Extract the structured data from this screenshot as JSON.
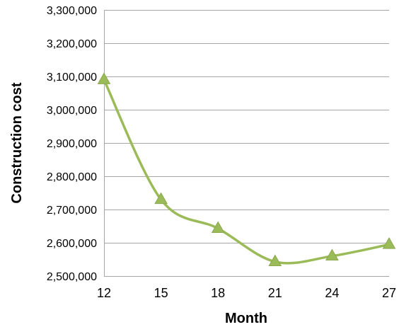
{
  "chart_data": {
    "type": "line",
    "title": "",
    "xlabel": "Month",
    "ylabel": "Construction cost",
    "x": [
      12,
      15,
      18,
      21,
      24,
      27
    ],
    "x_tick_labels": [
      "12",
      "15",
      "18",
      "21",
      "24",
      "27"
    ],
    "ylim": [
      2500000,
      3300000
    ],
    "y_ticks": [
      2500000,
      2600000,
      2700000,
      2800000,
      2900000,
      3000000,
      3100000,
      3200000,
      3300000
    ],
    "y_tick_labels": [
      "2,500,000",
      "2,600,000",
      "2,700,000",
      "2,800,000",
      "2,900,000",
      "3,000,000",
      "3,100,000",
      "3,200,000",
      "3,300,000"
    ],
    "grid": true,
    "legend": "none",
    "series": [
      {
        "values": [
          3090000,
          2730000,
          2643000,
          2543000,
          2560000,
          2595000
        ],
        "color": "#9bbb59",
        "marker": "triangle",
        "smooth": true
      }
    ]
  }
}
